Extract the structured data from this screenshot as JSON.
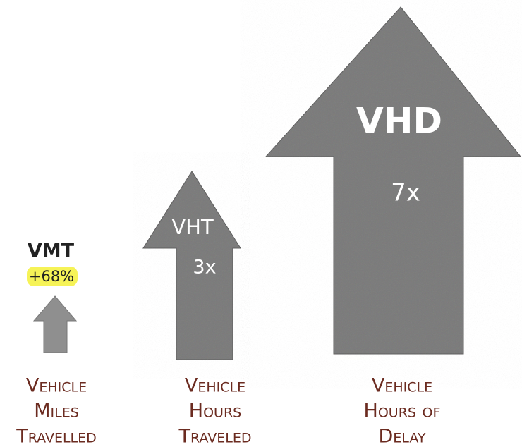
{
  "items": [
    {
      "code": "VMT",
      "change": "+68%",
      "label": [
        "Vehicle",
        "Miles",
        "Travelled"
      ]
    },
    {
      "code": "VHT",
      "change": "3x",
      "label": [
        "Vehicle",
        "Hours",
        "Traveled"
      ]
    },
    {
      "code": "VHD",
      "change": "7x",
      "label": [
        "Vehicle",
        "Hours of",
        "Delay"
      ]
    }
  ]
}
